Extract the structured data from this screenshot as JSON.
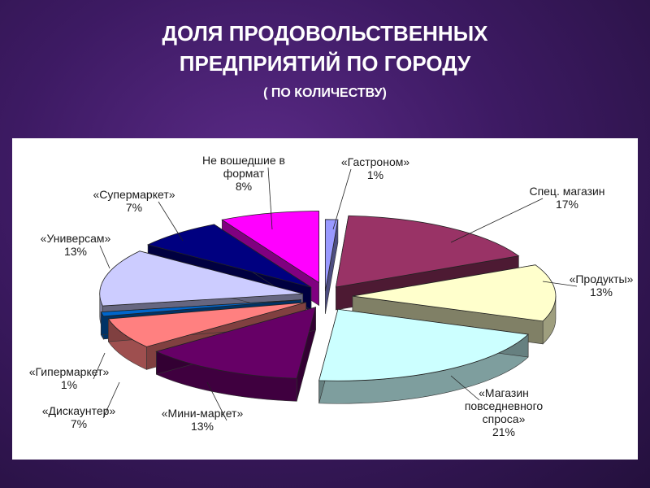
{
  "title_line1": "ДОЛЯ ПРОДОВОЛЬСТВЕННЫХ",
  "title_line2": "ПРЕДПРИЯТИЙ ПО ГОРОДУ",
  "subtitle": "( ПО КОЛИЧЕСТВУ)",
  "chart_data": {
    "type": "pie",
    "exploded": true,
    "three_d": true,
    "slices": [
      {
        "name": "«Гастроном»",
        "value": 1,
        "label_value": "1%",
        "color": "#9999ff"
      },
      {
        "name": "Спец. магазин",
        "value": 17,
        "label_value": "17%",
        "color": "#993366"
      },
      {
        "name": "«Продукты»",
        "value": 13,
        "label_value": "13%",
        "color": "#ffffcc"
      },
      {
        "name": "«Магазин повседневного спроса»",
        "value": 21,
        "label_value": "21%",
        "color": "#ccffff"
      },
      {
        "name": "Мини-маркет",
        "value": 13,
        "label_value": "13%",
        "color": "#660066"
      },
      {
        "name": "«Дискаунтер»",
        "value": 7,
        "label_value": "7%",
        "color": "#ff8080"
      },
      {
        "name": "«Гипермаркет»",
        "value": 1,
        "label_value": "1%",
        "color": "#0066cc"
      },
      {
        "name": "«Универсам»",
        "value": 13,
        "label_value": "13%",
        "color": "#ccccff"
      },
      {
        "name": "«Супермаркет»",
        "value": 7,
        "label_value": "7%",
        "color": "#000080"
      },
      {
        "name": "Не вошедшие в формат",
        "value": 8,
        "label_value": "8%",
        "color": "#ff00ff"
      }
    ]
  }
}
